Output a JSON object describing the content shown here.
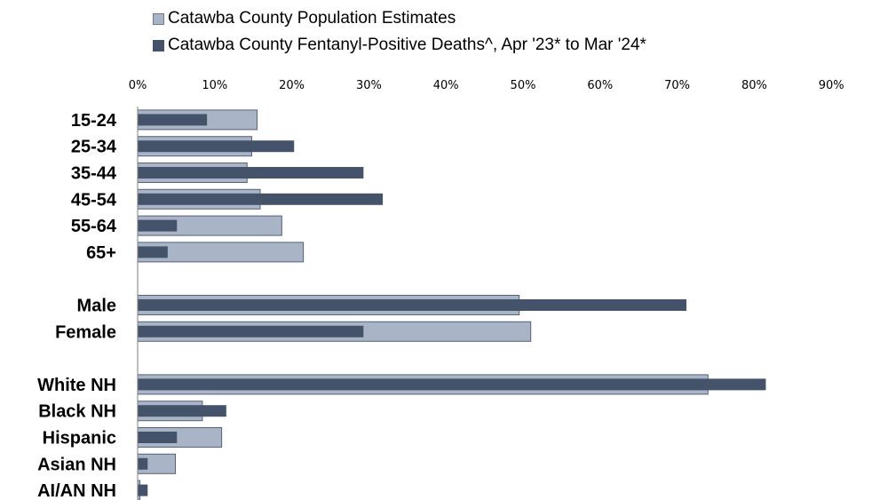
{
  "chart_data": {
    "type": "bar",
    "orientation": "horizontal",
    "title": "",
    "xlabel": "",
    "ylabel": "",
    "xlim": [
      0,
      90
    ],
    "ticks": [
      "0%",
      "10%",
      "20%",
      "30%",
      "40%",
      "50%",
      "60%",
      "70%",
      "80%",
      "90%"
    ],
    "tick_values": [
      0,
      10,
      20,
      30,
      40,
      50,
      60,
      70,
      80,
      90
    ],
    "grid": false,
    "legend_position": "top",
    "categories": [
      "15-24",
      "25-34",
      "35-44",
      "45-54",
      "55-64",
      "65+",
      "",
      "Male",
      "Female",
      "",
      "White NH",
      "Black NH",
      "Hispanic",
      "Asian NH",
      "AI/AN NH"
    ],
    "series": [
      {
        "name": "Catawba County Population Estimates",
        "color": "#a9b4c6",
        "values": [
          15.5,
          14.8,
          14.2,
          15.9,
          18.7,
          21.5,
          null,
          49.5,
          51.0,
          null,
          74.0,
          8.4,
          10.9,
          4.9,
          0.3
        ]
      },
      {
        "name": "Catawba County Fentanyl-Positive Deaths^, Apr '23* to Mar '24*",
        "color": "#44536a",
        "values": [
          9.0,
          20.3,
          29.3,
          31.8,
          5.1,
          3.9,
          null,
          71.2,
          29.3,
          null,
          81.5,
          11.5,
          5.1,
          1.3,
          1.3
        ]
      }
    ]
  }
}
